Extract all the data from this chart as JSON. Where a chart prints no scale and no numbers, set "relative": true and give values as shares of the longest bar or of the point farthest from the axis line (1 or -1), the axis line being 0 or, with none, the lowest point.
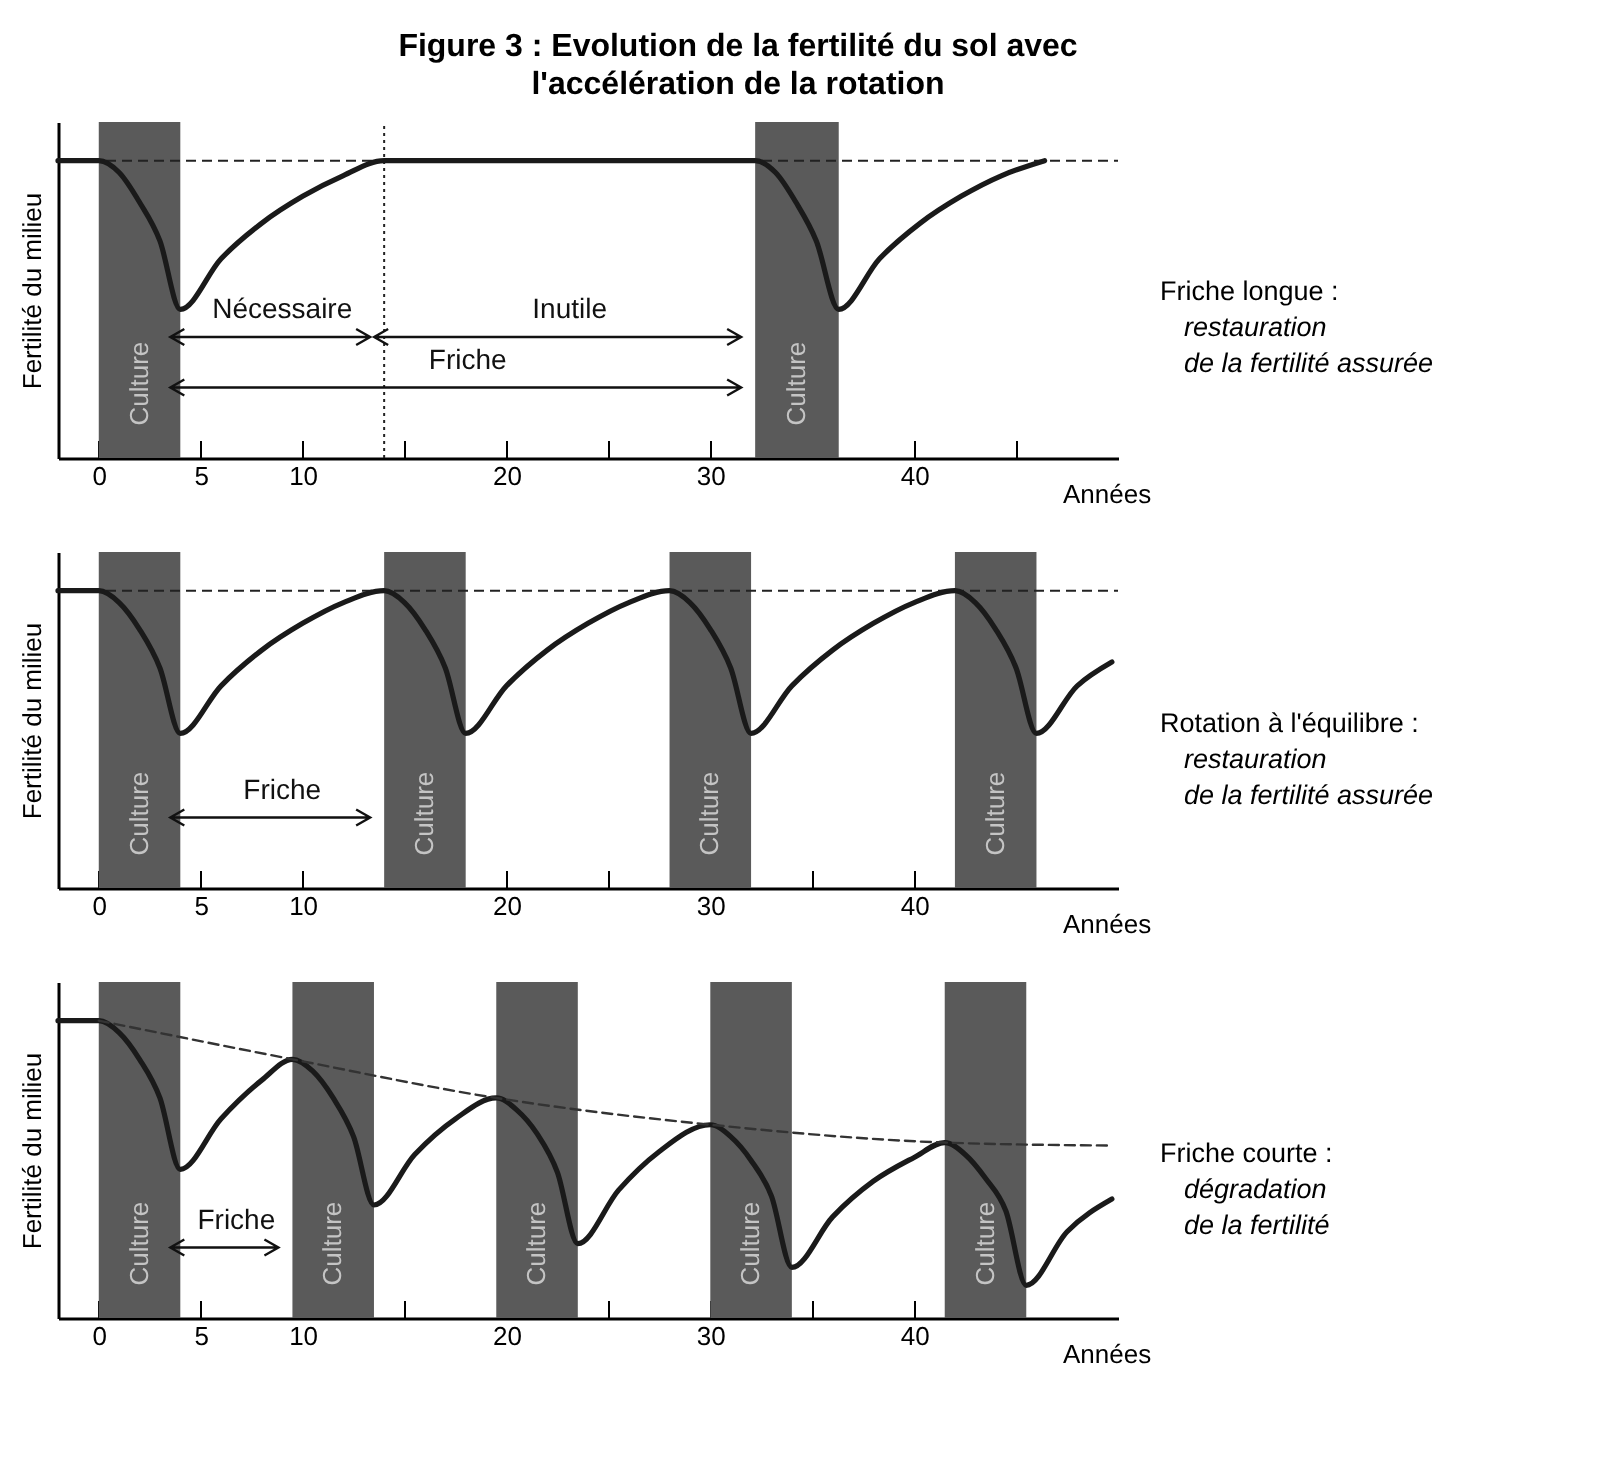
{
  "chart_data": [
    {
      "type": "line",
      "relative": true,
      "title": "Figure 3 : Evolution de la fertilité du sol avec l'accélération de la rotation",
      "xlabel": "Années",
      "ylabel": "Fertilité du milieu",
      "tick_labels": "x",
      "xlim": [
        -2,
        50
      ],
      "xticks": [
        0,
        5,
        10,
        {
          "value": 15,
          "label": null
        },
        20,
        {
          "value": 25,
          "label": null
        },
        30,
        {
          "value": 35,
          "label": null
        },
        40,
        {
          "value": 45,
          "label": null
        }
      ],
      "series": [
        {
          "color": "#1a1a1a",
          "x": [
            -2,
            0,
            1,
            2,
            3,
            4,
            6,
            8,
            10,
            12,
            14,
            32.2,
            33.2,
            34.2,
            35.2,
            36.3,
            38.3,
            40.3,
            42.3,
            44.3,
            46.4
          ],
          "values": [
            1,
            1,
            0.96,
            0.86,
            0.73,
            0.5,
            0.67,
            0.79,
            0.88,
            0.95,
            1,
            1,
            0.96,
            0.86,
            0.73,
            0.5,
            0.67,
            0.79,
            0.88,
            0.95,
            1
          ]
        }
      ],
      "bands": [
        {
          "axis": "x",
          "from": 0,
          "to": 4,
          "label": "Culture",
          "color": "#5a5a5a"
        },
        {
          "axis": "x",
          "from": 32.2,
          "to": 36.3,
          "label": "Culture",
          "color": "#5a5a5a"
        }
      ],
      "ref_lines": [
        {
          "axis": "y",
          "value": 1,
          "line_style": "dashed"
        },
        {
          "axis": "x",
          "value": 14,
          "line_style": "dotted"
        }
      ],
      "annotations": [
        "Nécessaire",
        "Inutile",
        "Friche",
        "Friche longue :",
        "restauration",
        "de la fertilité assurée"
      ]
    },
    {
      "type": "line",
      "relative": true,
      "xlabel": "Années",
      "ylabel": "Fertilité du milieu",
      "tick_labels": "x",
      "xlim": [
        -2,
        50
      ],
      "xticks": [
        0,
        5,
        10,
        {
          "value": 15,
          "label": null
        },
        20,
        {
          "value": 25,
          "label": null
        },
        30,
        {
          "value": 35,
          "label": null
        },
        40,
        {
          "value": 45,
          "label": null
        }
      ],
      "series": [
        {
          "color": "#1a1a1a",
          "x": [
            -2,
            0,
            1,
            2,
            3,
            4,
            6,
            8,
            10,
            12,
            14,
            15,
            16,
            17,
            18,
            20,
            22,
            24,
            26,
            28,
            29,
            30,
            31,
            32,
            34,
            36,
            38,
            40,
            42,
            43,
            44,
            45,
            46,
            48,
            49.7
          ],
          "values": [
            1,
            1,
            0.96,
            0.87,
            0.74,
            0.52,
            0.68,
            0.8,
            0.89,
            0.96,
            1,
            0.96,
            0.87,
            0.74,
            0.52,
            0.68,
            0.8,
            0.89,
            0.96,
            1,
            0.96,
            0.87,
            0.74,
            0.52,
            0.68,
            0.8,
            0.89,
            0.96,
            1,
            0.96,
            0.87,
            0.74,
            0.52,
            0.68,
            0.76
          ]
        }
      ],
      "bands": [
        {
          "axis": "x",
          "from": 0,
          "to": 4,
          "label": "Culture",
          "color": "#5a5a5a"
        },
        {
          "axis": "x",
          "from": 14,
          "to": 18,
          "label": "Culture",
          "color": "#5a5a5a"
        },
        {
          "axis": "x",
          "from": 28,
          "to": 32,
          "label": "Culture",
          "color": "#5a5a5a"
        },
        {
          "axis": "x",
          "from": 42,
          "to": 46,
          "label": "Culture",
          "color": "#5a5a5a"
        }
      ],
      "ref_lines": [
        {
          "axis": "y",
          "value": 1,
          "line_style": "dashed"
        }
      ],
      "annotations": [
        "Friche",
        "Rotation à l'équilibre :",
        "restauration",
        "de la fertilité assurée"
      ]
    },
    {
      "type": "line",
      "relative": true,
      "xlabel": "Années",
      "ylabel": "Fertilité du milieu",
      "tick_labels": "x",
      "xlim": [
        -2,
        50
      ],
      "xticks": [
        0,
        5,
        10,
        {
          "value": 15,
          "label": null
        },
        20,
        {
          "value": 25,
          "label": null
        },
        30,
        {
          "value": 35,
          "label": null
        },
        40,
        {
          "value": 45,
          "label": null
        }
      ],
      "series": [
        {
          "color": "#1a1a1a",
          "x": [
            -2,
            0,
            1,
            2,
            3,
            4,
            6,
            8,
            9.5,
            10.5,
            11.5,
            12.5,
            13.5,
            15.5,
            17.5,
            19.5,
            20.5,
            21.5,
            22.5,
            23.5,
            25.5,
            27.5,
            30,
            31,
            32,
            33,
            34,
            36,
            38,
            40,
            41.5,
            42.5,
            43.5,
            44.5,
            45.5,
            47.5,
            49.7
          ],
          "values": [
            1,
            1,
            0.96,
            0.87,
            0.74,
            0.5,
            0.67,
            0.8,
            0.87,
            0.83,
            0.74,
            0.61,
            0.38,
            0.55,
            0.67,
            0.74,
            0.7,
            0.62,
            0.49,
            0.25,
            0.43,
            0.56,
            0.65,
            0.61,
            0.53,
            0.41,
            0.17,
            0.34,
            0.46,
            0.54,
            0.59,
            0.55,
            0.47,
            0.36,
            0.11,
            0.29,
            0.4
          ]
        },
        {
          "type": "line",
          "line_style": "dashed",
          "color": "#333333",
          "x": [
            0,
            9.5,
            19.5,
            30,
            41.5,
            49.7
          ],
          "values": [
            1,
            0.87,
            0.74,
            0.65,
            0.59,
            0.58
          ]
        }
      ],
      "bands": [
        {
          "axis": "x",
          "from": 0,
          "to": 4,
          "label": "Culture",
          "color": "#5a5a5a"
        },
        {
          "axis": "x",
          "from": 9.5,
          "to": 13.5,
          "label": "Culture",
          "color": "#5a5a5a"
        },
        {
          "axis": "x",
          "from": 19.5,
          "to": 23.5,
          "label": "Culture",
          "color": "#5a5a5a"
        },
        {
          "axis": "x",
          "from": 30,
          "to": 34,
          "label": "Culture",
          "color": "#5a5a5a"
        },
        {
          "axis": "x",
          "from": 41.5,
          "to": 45.5,
          "label": "Culture",
          "color": "#5a5a5a"
        }
      ],
      "annotations": [
        "Friche",
        "Friche courte :",
        "dégradation",
        "de la fertilité"
      ]
    }
  ]
}
